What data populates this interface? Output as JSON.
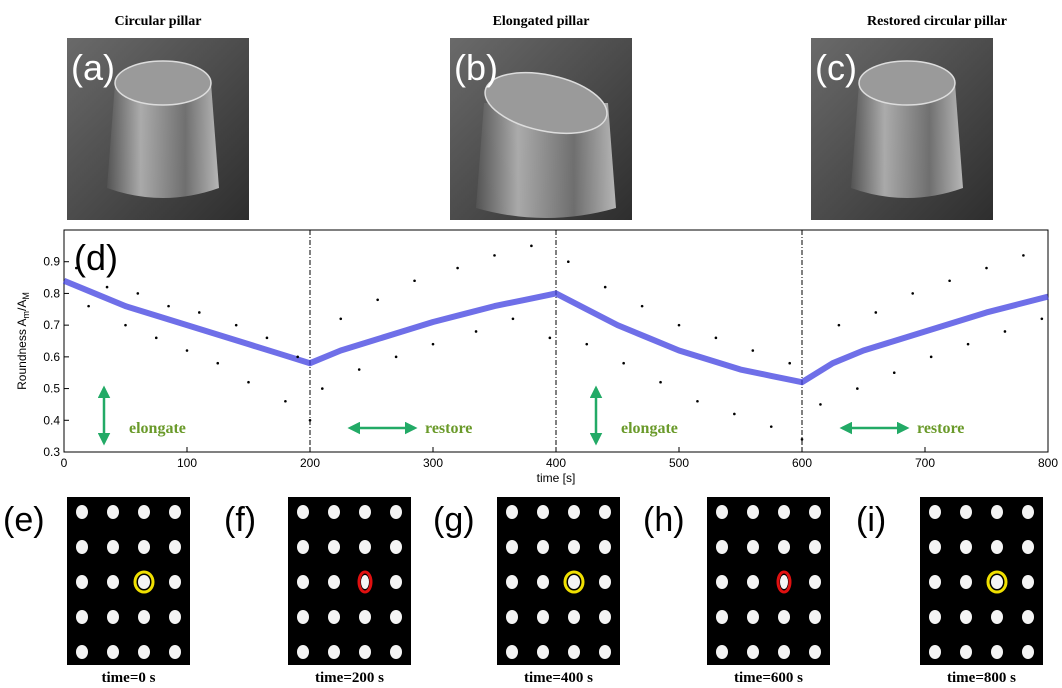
{
  "top_panels": [
    {
      "label": "(a)",
      "title": "Circular pillar"
    },
    {
      "label": "(b)",
      "title": "Elongated pillar"
    },
    {
      "label": "(c)",
      "title": "Restored circular pillar"
    }
  ],
  "chart_data": {
    "type": "scatter",
    "panel_label": "(d)",
    "ylabel_parts": [
      "Roundness A",
      "m",
      "/A",
      "M"
    ],
    "xlabel": "time [s]",
    "xlim": [
      0,
      800
    ],
    "ylim": [
      0.3,
      1.0
    ],
    "xticks": [
      0,
      100,
      200,
      300,
      400,
      500,
      600,
      700,
      800
    ],
    "yticks": [
      0.3,
      0.4,
      0.5,
      0.6,
      0.7,
      0.8,
      0.9
    ],
    "vlines": [
      200,
      400,
      600
    ],
    "annotations": [
      {
        "text": "elongate",
        "arrow": "vertical"
      },
      {
        "text": "restore",
        "arrow": "horizontal"
      },
      {
        "text": "elongate",
        "arrow": "vertical"
      },
      {
        "text": "restore",
        "arrow": "horizontal"
      }
    ],
    "annotation_color": "#6a9a2a",
    "arrow_color": "#22aa66",
    "series": [
      {
        "style": "line",
        "color": "#3f3fe0",
        "x": [
          0,
          25,
          50,
          75,
          100,
          125,
          150,
          175,
          200,
          225,
          250,
          275,
          300,
          325,
          350,
          375,
          400,
          425,
          450,
          475,
          500,
          525,
          550,
          575,
          600,
          625,
          650,
          675,
          700,
          725,
          750,
          775,
          800
        ],
        "values": [
          0.84,
          0.8,
          0.76,
          0.73,
          0.7,
          0.67,
          0.64,
          0.61,
          0.58,
          0.62,
          0.65,
          0.68,
          0.71,
          0.735,
          0.76,
          0.78,
          0.8,
          0.75,
          0.7,
          0.66,
          0.62,
          0.59,
          0.56,
          0.54,
          0.52,
          0.58,
          0.62,
          0.65,
          0.68,
          0.71,
          0.74,
          0.765,
          0.79
        ]
      },
      {
        "style": "points",
        "color": "#000000",
        "x": [
          10,
          20,
          35,
          50,
          60,
          75,
          85,
          100,
          110,
          125,
          140,
          150,
          165,
          180,
          190,
          200,
          210,
          225,
          240,
          255,
          270,
          285,
          300,
          320,
          335,
          350,
          365,
          380,
          395,
          410,
          425,
          440,
          455,
          470,
          485,
          500,
          515,
          530,
          545,
          560,
          575,
          590,
          600,
          615,
          630,
          645,
          660,
          675,
          690,
          705,
          720,
          735,
          750,
          765,
          780,
          795
        ],
        "values": [
          0.88,
          0.76,
          0.82,
          0.7,
          0.8,
          0.66,
          0.76,
          0.62,
          0.74,
          0.58,
          0.7,
          0.52,
          0.66,
          0.46,
          0.6,
          0.4,
          0.5,
          0.72,
          0.56,
          0.78,
          0.6,
          0.84,
          0.64,
          0.88,
          0.68,
          0.92,
          0.72,
          0.95,
          0.66,
          0.9,
          0.64,
          0.82,
          0.58,
          0.76,
          0.52,
          0.7,
          0.46,
          0.66,
          0.42,
          0.62,
          0.38,
          0.58,
          0.34,
          0.45,
          0.7,
          0.5,
          0.74,
          0.55,
          0.8,
          0.6,
          0.84,
          0.64,
          0.88,
          0.68,
          0.92,
          0.72
        ]
      }
    ]
  },
  "bottom_panels": [
    {
      "label": "(e)",
      "caption": "time=0 s",
      "ring_color": "#f0e000"
    },
    {
      "label": "(f)",
      "caption": "time=200 s",
      "ring_color": "#e01010"
    },
    {
      "label": "(g)",
      "caption": "time=400 s",
      "ring_color": "#f0e000"
    },
    {
      "label": "(h)",
      "caption": "time=600 s",
      "ring_color": "#e01010"
    },
    {
      "label": "(i)",
      "caption": "time=800 s",
      "ring_color": "#f0e000"
    }
  ]
}
